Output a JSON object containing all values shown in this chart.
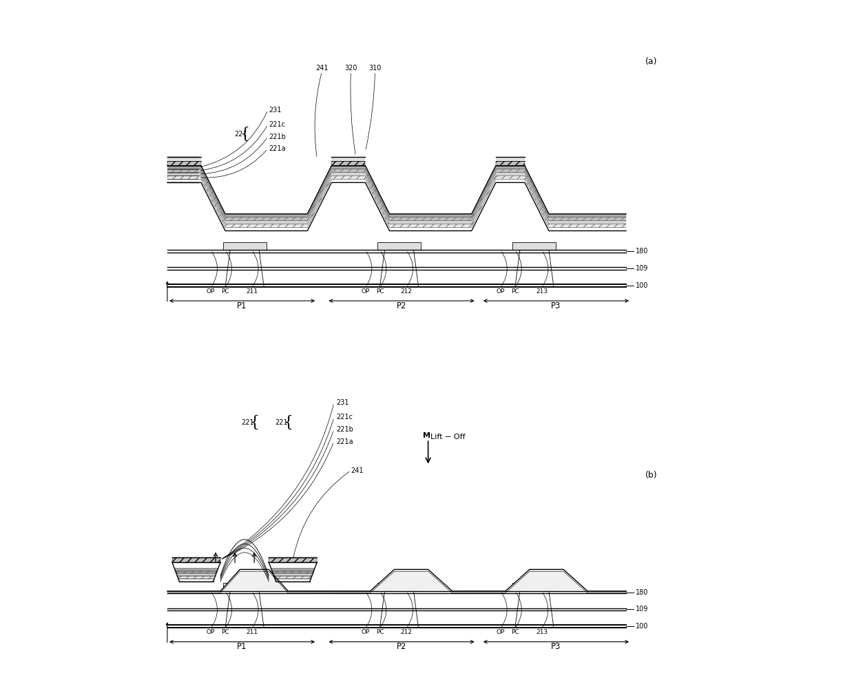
{
  "bg_color": "#ffffff",
  "line_color": "#000000",
  "fig_width": 12.4,
  "fig_height": 9.91,
  "panel_a_label": "(a)",
  "panel_b_label": "(b)",
  "labels_180": "180",
  "labels_109": "109",
  "labels_100": "100",
  "pixel_labels": [
    "P1",
    "P2",
    "P3"
  ],
  "cell_labels": [
    "211",
    "212",
    "213"
  ],
  "op_label": "OP",
  "pc_label": "PC",
  "lift_off_label": "Lift − Off",
  "label_231": "231",
  "label_221c": "221c",
  "label_221b": "221b",
  "label_221a": "221a",
  "label_221": "221",
  "label_241": "241",
  "label_320": "320",
  "label_310": "310"
}
